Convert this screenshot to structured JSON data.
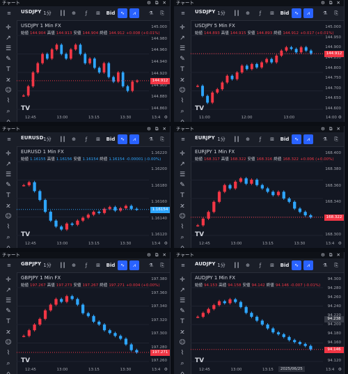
{
  "window_title": "チャート",
  "window_controls": "⚙ ⧉ ✕",
  "toolbar": {
    "interval_label": "1分",
    "bid_label": "Bid"
  },
  "legend_labels": {
    "open": "始値",
    "high": "高値",
    "low": "安値",
    "close": "終値"
  },
  "colors": {
    "up": "#f23645",
    "down": "#2ea6ff",
    "panel": "#131722",
    "accent": "#2962ff"
  },
  "logo": "TV",
  "panels": [
    {
      "symbol": "USDJPY",
      "title": "USDJPY  1  Min  FX",
      "open": "144.904",
      "high": "144.913",
      "low": "144.904",
      "close": "144.912",
      "change": "+0.008 (+0.01%)",
      "price_ticks": [
        "145.000",
        "144.980",
        "144.960",
        "144.940",
        "144.920",
        "144.900",
        "144.880",
        "144.860"
      ],
      "last_price": "144.912",
      "last_color": "#f23645",
      "time_ticks": [
        "12:45",
        "13:00",
        "13:15",
        "13:30",
        "13:4"
      ],
      "chart_data": {
        "type": "line",
        "ylim": [
          144.85,
          145.01
        ],
        "values": [
          144.88,
          144.9,
          144.93,
          144.95,
          144.97,
          144.96,
          144.98,
          144.99,
          144.97,
          144.96,
          144.98,
          144.99,
          144.97,
          144.95,
          144.96,
          144.94,
          144.93,
          144.95,
          144.92,
          144.91,
          144.93,
          144.9,
          144.89,
          144.91,
          144.912
        ]
      }
    },
    {
      "symbol": "USDJPY",
      "title": "USDJPY  5  Min  FX",
      "open": "144.893",
      "high": "144.915",
      "low": "144.893",
      "close": "144.912",
      "change": "+0.017 (+0.01%)",
      "price_ticks": [
        "145.000",
        "144.950",
        "144.900",
        "144.850",
        "144.800",
        "144.750",
        "144.700",
        "144.650",
        "144.600"
      ],
      "last_price": "144.912",
      "last_color": "#f23645",
      "time_ticks": [
        "11:00",
        "12:00",
        "13:00",
        "14:00"
      ],
      "chart_data": {
        "type": "line",
        "ylim": [
          144.58,
          145.02
        ],
        "values": [
          144.72,
          144.66,
          144.62,
          144.68,
          144.7,
          144.74,
          144.78,
          144.76,
          144.8,
          144.84,
          144.82,
          144.85,
          144.83,
          144.86,
          144.88,
          144.86,
          144.9,
          144.93,
          144.95,
          144.94,
          144.92,
          144.95,
          144.93,
          144.912
        ]
      }
    },
    {
      "symbol": "EURUSD",
      "title": "EURUSD  1  Min  FX",
      "open": "1.16155",
      "high": "1.16156",
      "low": "1.16154",
      "close": "1.16154",
      "change": "-0.00001 (-0.00%)",
      "price_ticks": [
        "1.16220",
        "1.16200",
        "1.16180",
        "1.16160",
        "1.16140",
        "1.16120"
      ],
      "last_price": "1.16154",
      "last_color": "#2ea6ff",
      "time_ticks": [
        "12:45",
        "13:00",
        "13:15",
        "13:30",
        "13:4"
      ],
      "chart_data": {
        "type": "line",
        "ylim": [
          1.1611,
          1.16235
        ],
        "values": [
          1.16195,
          1.162,
          1.16185,
          1.1617,
          1.1615,
          1.16135,
          1.16125,
          1.1612,
          1.1613,
          1.16128,
          1.16135,
          1.1614,
          1.16145,
          1.1615,
          1.16148,
          1.16155,
          1.16158,
          1.16152,
          1.16156,
          1.1616,
          1.16155,
          1.16154
        ]
      }
    },
    {
      "symbol": "EURJPY",
      "title": "EURJPY  1  Min  FX",
      "open": "168.317",
      "high": "168.322",
      "low": "168.316",
      "close": "168.322",
      "change": "+0.006 (+0.00%)",
      "price_ticks": [
        "168.400",
        "168.380",
        "168.360",
        "168.340",
        "168.320",
        "168.300"
      ],
      "last_price": "168.322",
      "last_color": "#f23645",
      "time_ticks": [
        "12:45",
        "13:00",
        "13:15",
        "13:30",
        "13:4"
      ],
      "chart_data": {
        "type": "line",
        "ylim": [
          168.295,
          168.405
        ],
        "values": [
          168.31,
          168.32,
          168.33,
          168.345,
          168.36,
          168.37,
          168.365,
          168.375,
          168.38,
          168.372,
          168.378,
          168.37,
          168.365,
          168.36,
          168.355,
          168.36,
          168.35,
          168.345,
          168.335,
          168.33,
          168.325,
          168.322
        ]
      }
    },
    {
      "symbol": "GBPJPY",
      "title": "GBPJPY  1  Min  FX",
      "open": "197.267",
      "high": "197.273",
      "low": "197.267",
      "close": "197.271",
      "change": "+0.004 (+0.00%)",
      "price_ticks": [
        "197.380",
        "197.360",
        "197.340",
        "197.320",
        "197.300",
        "197.280",
        "197.260"
      ],
      "last_price": "197.271",
      "last_color": "#f23645",
      "time_ticks": [
        "12:45",
        "13:00",
        "13:15",
        "13:30",
        "13:4"
      ],
      "chart_data": {
        "type": "line",
        "ylim": [
          197.255,
          197.385
        ],
        "values": [
          197.3,
          197.31,
          197.32,
          197.33,
          197.345,
          197.355,
          197.365,
          197.36,
          197.37,
          197.365,
          197.355,
          197.34,
          197.335,
          197.325,
          197.32,
          197.31,
          197.305,
          197.3,
          197.295,
          197.285,
          197.275,
          197.271
        ]
      }
    },
    {
      "symbol": "AUDJPY",
      "title": "AUDJPY  1  Min  FX",
      "open": "94.153",
      "high": "94.158",
      "low": "94.142",
      "close": "94.146",
      "change": "-0.007 (-0.01%)",
      "price_ticks": [
        "94.300",
        "94.280",
        "94.260",
        "94.240",
        "94.220",
        "94.200",
        "94.180",
        "94.160",
        "94.140",
        "94.120"
      ],
      "last_price": "94.146",
      "last_color": "#f23645",
      "crosshair_price": "94.238",
      "date_tag": "2025/06/25",
      "time_ticks": [
        "12:45",
        "13:00",
        "13:15",
        "13:33",
        "13:4"
      ],
      "chart_data": {
        "type": "line",
        "ylim": [
          94.115,
          94.305
        ],
        "values": [
          94.23,
          94.24,
          94.25,
          94.26,
          94.27,
          94.265,
          94.275,
          94.268,
          94.255,
          94.24,
          94.23,
          94.22,
          94.21,
          94.2,
          94.19,
          94.185,
          94.178,
          94.17,
          94.165,
          94.16,
          94.155,
          94.146
        ]
      }
    }
  ]
}
